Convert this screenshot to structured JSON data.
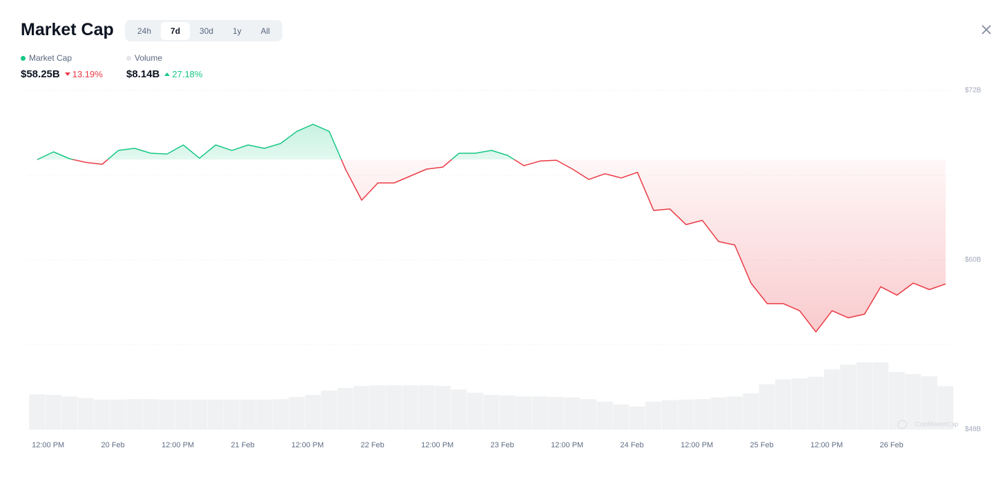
{
  "header": {
    "title": "Market Cap",
    "tabs": [
      "24h",
      "7d",
      "30d",
      "1y",
      "All"
    ],
    "active_tab": "7d"
  },
  "stats": [
    {
      "value": "$58.25B",
      "change": "13.19%",
      "direction": "down"
    },
    {
      "value": "$8.14B",
      "change": "27.18%",
      "direction": "up"
    }
  ],
  "watermark": "CoinMarketCap",
  "chart_data": {
    "type": "line",
    "x": [
      10,
      13,
      16,
      19,
      22,
      25,
      28,
      31,
      34,
      37,
      40,
      43,
      46,
      49,
      52,
      55,
      58,
      61,
      64,
      67,
      70,
      73,
      76,
      79,
      82,
      85,
      88,
      91,
      94,
      97,
      100,
      103,
      106,
      109,
      112,
      115,
      118,
      121,
      124,
      127,
      130,
      133,
      136,
      139,
      142,
      145,
      148,
      151,
      154,
      157,
      160,
      163,
      166,
      169,
      172,
      175,
      178
    ],
    "xlim": [
      10,
      178
    ],
    "xticks": [
      {
        "value": 12,
        "label": "12:00 PM"
      },
      {
        "value": 24,
        "label": "20 Feb"
      },
      {
        "value": 36,
        "label": "12:00 PM"
      },
      {
        "value": 48,
        "label": "21 Feb"
      },
      {
        "value": 60,
        "label": "12:00 PM"
      },
      {
        "value": 72,
        "label": "22 Feb"
      },
      {
        "value": 84,
        "label": "12:00 PM"
      },
      {
        "value": 96,
        "label": "23 Feb"
      },
      {
        "value": 108,
        "label": "12:00 PM"
      },
      {
        "value": 120,
        "label": "24 Feb"
      },
      {
        "value": 132,
        "label": "12:00 PM"
      },
      {
        "value": 144,
        "label": "25 Feb"
      },
      {
        "value": 156,
        "label": "12:00 PM"
      },
      {
        "value": 168,
        "label": "26 Feb"
      }
    ],
    "ylim": [
      48,
      72
    ],
    "yticks": [
      {
        "value": 72,
        "label": "$72B"
      },
      {
        "value": 60,
        "label": "$60B"
      },
      {
        "value": 48,
        "label": "$48B"
      }
    ],
    "minor_grid": [
      66,
      54
    ],
    "grid": true,
    "below_color": "#ea3943",
    "series": [
      {
        "name": "Market Cap",
        "color": "#16c784",
        "values": [
          67.1,
          67.65,
          67.16,
          66.9,
          66.77,
          67.75,
          67.9,
          67.55,
          67.5,
          68.14,
          67.2,
          68.14,
          67.75,
          68.14,
          67.9,
          68.24,
          69.1,
          69.6,
          69.1,
          66.43,
          64.23,
          65.45,
          65.45,
          65.94,
          66.43,
          66.57,
          67.55,
          67.55,
          67.75,
          67.4,
          66.67,
          67.0,
          67.06,
          66.43,
          65.7,
          66.1,
          65.8,
          66.2,
          63.5,
          63.6,
          62.5,
          62.8,
          61.3,
          61.05,
          58.36,
          56.9,
          56.9,
          56.4,
          54.9,
          56.4,
          55.9,
          56.16,
          58.1,
          57.5,
          58.36,
          57.9,
          58.3
        ]
      },
      {
        "name": "Volume",
        "color": "#e3e5e8",
        "axis": "y3",
        "values": [
          6.6,
          6.5,
          6.2,
          5.9,
          5.6,
          5.6,
          5.7,
          5.7,
          5.6,
          5.6,
          5.6,
          5.6,
          5.6,
          5.6,
          5.6,
          5.7,
          6.1,
          6.5,
          7.3,
          7.8,
          8.2,
          8.3,
          8.3,
          8.3,
          8.3,
          8.2,
          7.5,
          6.9,
          6.5,
          6.4,
          6.2,
          6.2,
          6.1,
          6.0,
          5.7,
          5.2,
          4.7,
          4.3,
          5.2,
          5.5,
          5.6,
          5.7,
          6.0,
          6.2,
          6.8,
          8.5,
          9.4,
          9.6,
          9.9,
          11.3,
          12.2,
          12.6,
          12.6,
          10.8,
          10.4,
          10.0,
          8.14
        ]
      }
    ],
    "y3lim": [
      0,
      13
    ]
  }
}
